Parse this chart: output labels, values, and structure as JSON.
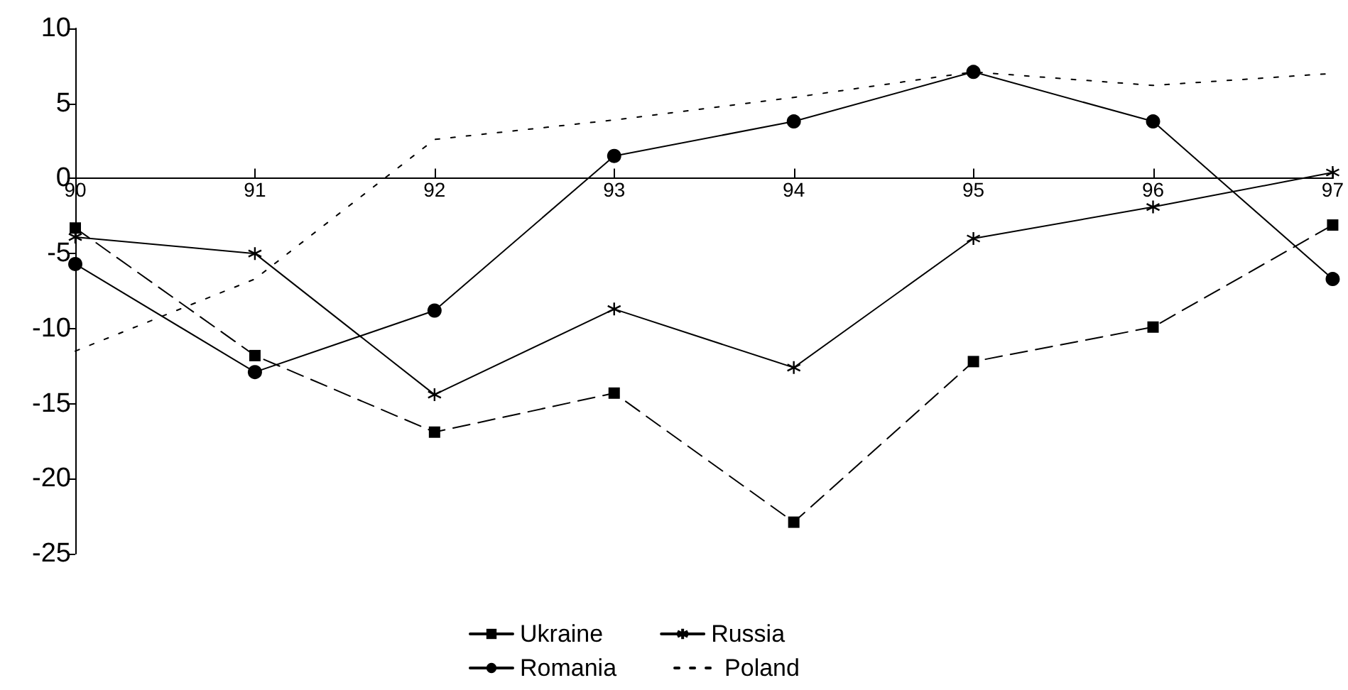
{
  "chart_data": {
    "type": "line",
    "categories": [
      "90",
      "91",
      "92",
      "93",
      "94",
      "95",
      "96",
      "97"
    ],
    "series": [
      {
        "name": "Ukraine",
        "color": "#000000",
        "marker": "square",
        "line_style": "dashed",
        "values": [
          -3.3,
          -11.8,
          -16.9,
          -14.3,
          -22.9,
          -12.2,
          -9.9,
          -3.1
        ]
      },
      {
        "name": "Russia",
        "color": "#000000",
        "marker": "cross",
        "line_style": "solid",
        "values": [
          -3.9,
          -5.0,
          -14.4,
          -8.7,
          -12.6,
          -4.0,
          -1.9,
          0.4
        ]
      },
      {
        "name": "Romania",
        "color": "#000000",
        "marker": "circle",
        "line_style": "solid",
        "values": [
          -5.7,
          -12.9,
          -8.8,
          1.5,
          3.8,
          7.1,
          3.8,
          -6.7
        ]
      },
      {
        "name": "Poland",
        "color": "#000000",
        "marker": "none",
        "line_style": "dotted",
        "values": [
          -11.5,
          -6.7,
          2.6,
          3.9,
          5.4,
          7.1,
          6.2,
          7.0
        ]
      }
    ],
    "ylim": [
      -25,
      10
    ],
    "yticks": [
      -25,
      -20,
      -15,
      -10,
      -5,
      0,
      5,
      10
    ],
    "grid": false,
    "legend": "bottom"
  }
}
